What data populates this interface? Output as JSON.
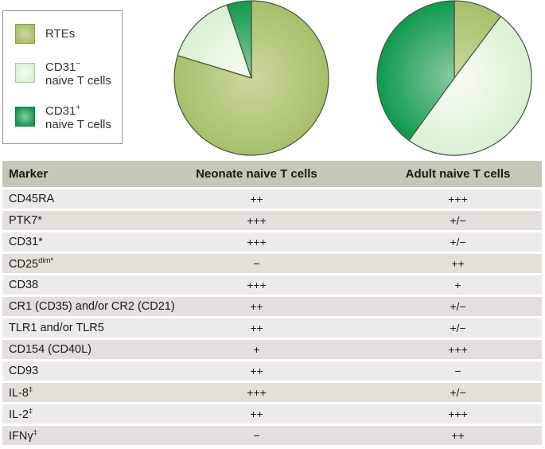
{
  "palette": {
    "rte": {
      "center": "#ccd89d",
      "edge": "#a6bf6b",
      "border": "#87a04e",
      "label": "RTEs"
    },
    "cd31neg": {
      "center": "#f8fcf5",
      "edge": "#daf0d3",
      "border": "#b2c6aa",
      "label": "CD31− naive T cells"
    },
    "cd31pos": {
      "center": "#8ccaa0",
      "edge": "#0d9a4d",
      "border": "#0b7f41",
      "label": "CD31+ naive T cells"
    }
  },
  "pie_stroke": "#47533d",
  "table_colors": {
    "header_bg": "#c7c7b9",
    "row_light": "#edebe6",
    "row_dark": "#e2e0d9",
    "text": "#1a1a1a"
  },
  "legend": {
    "items": [
      {
        "base": "RTEs",
        "sup": "",
        "line2": "",
        "swatch": "rte"
      },
      {
        "base": "CD31",
        "sup": "−",
        "line2": "naive T cells",
        "swatch": "cd31neg"
      },
      {
        "base": "CD31",
        "sup": "+",
        "line2": "naive T cells",
        "swatch": "cd31pos"
      }
    ]
  },
  "chart_data": [
    {
      "type": "pie",
      "title": "Neonate naive T cells",
      "legend_position": "top-left box",
      "slices": [
        {
          "label": "RTEs",
          "percent": 79.7,
          "start_deg": 0,
          "end_deg": 287,
          "color_key": "rte"
        },
        {
          "label": "CD31− naive T cells",
          "percent": 15.1,
          "start_deg": 287,
          "end_deg": 341.5,
          "color_key": "cd31neg"
        },
        {
          "label": "CD31+ naive T cells",
          "percent": 5.2,
          "start_deg": 341.5,
          "end_deg": 360,
          "color_key": "cd31pos"
        }
      ]
    },
    {
      "type": "pie",
      "title": "Adult naive T cells",
      "legend_position": "top-left box",
      "slices": [
        {
          "label": "RTEs",
          "percent": 10.3,
          "start_deg": 0,
          "end_deg": 37,
          "color_key": "rte"
        },
        {
          "label": "CD31− naive T cells",
          "percent": 49.7,
          "start_deg": 37,
          "end_deg": 216,
          "color_key": "cd31neg"
        },
        {
          "label": "CD31+ naive T cells",
          "percent": 40.0,
          "start_deg": 216,
          "end_deg": 360,
          "color_key": "cd31pos"
        }
      ]
    },
    {
      "type": "table",
      "columns": [
        "Marker",
        "Neonate naive T cells",
        "Adult naive T cells"
      ],
      "rows": [
        {
          "marker": "CD45RA",
          "sup": "",
          "neonate": "++",
          "adult": "+++"
        },
        {
          "marker": "PTK7*",
          "sup": "",
          "neonate": "+++",
          "adult": "+/−"
        },
        {
          "marker": "CD31*",
          "sup": "",
          "neonate": "+++",
          "adult": "+/−"
        },
        {
          "marker": "CD25",
          "sup": "dim*",
          "neonate": "−",
          "adult": "++"
        },
        {
          "marker": "CD38",
          "sup": "",
          "neonate": "+++",
          "adult": "+"
        },
        {
          "marker": "CR1 (CD35) and/or CR2 (CD21)",
          "sup": "",
          "neonate": "++",
          "adult": "+/−"
        },
        {
          "marker": "TLR1 and/or TLR5",
          "sup": "",
          "neonate": "++",
          "adult": "+/−"
        },
        {
          "marker": "CD154 (CD40L)",
          "sup": "",
          "neonate": "+",
          "adult": "+++"
        },
        {
          "marker": "CD93",
          "sup": "",
          "neonate": "++",
          "adult": "−"
        },
        {
          "marker": "IL-8",
          "sup": "‡",
          "neonate": "+++",
          "adult": "+/−"
        },
        {
          "marker": "IL-2",
          "sup": "‡",
          "neonate": "++",
          "adult": "+++"
        },
        {
          "marker": "IFNγ",
          "sup": "‡",
          "neonate": "−",
          "adult": "++"
        }
      ]
    }
  ]
}
